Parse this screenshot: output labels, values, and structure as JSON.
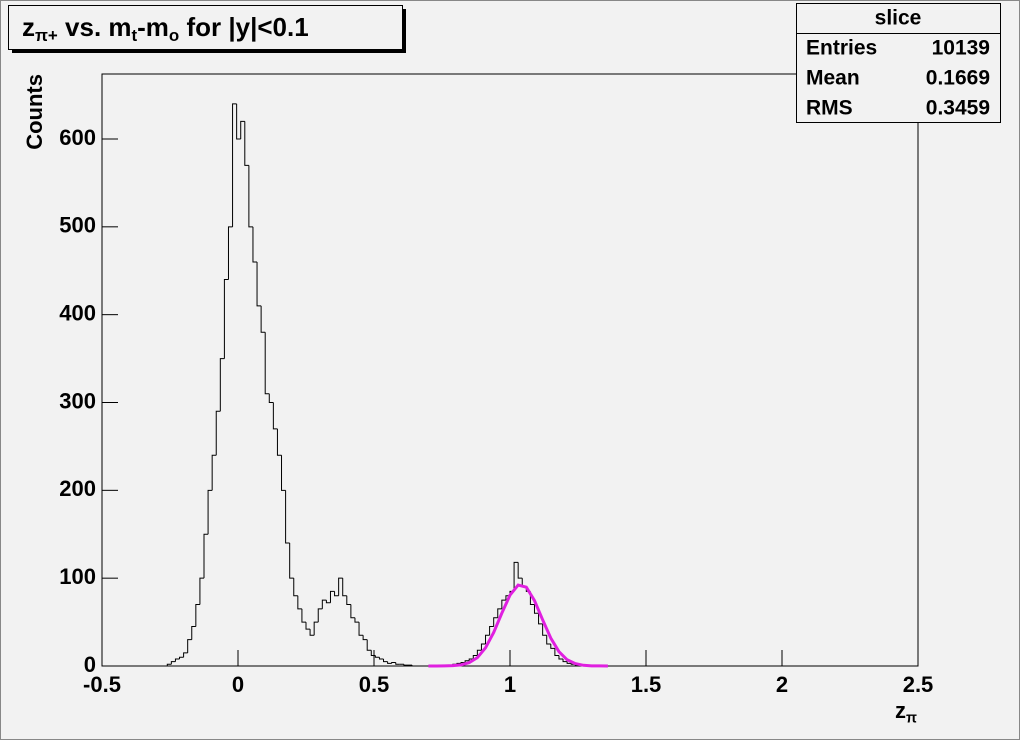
{
  "chart_data": {
    "type": "histogram",
    "title": [
      {
        "text": "z"
      },
      {
        "text": "π+",
        "sub": true
      },
      {
        "text": " vs. m"
      },
      {
        "text": "t",
        "sub": true
      },
      {
        "text": "-m"
      },
      {
        "text": "o",
        "sub": true
      },
      {
        "text": " for |y|<0.1"
      }
    ],
    "x_label": [
      {
        "text": "z"
      },
      {
        "text": "π",
        "sub": true
      }
    ],
    "y_label": "Counts",
    "color": "#000000",
    "bins": [
      -0.26,
      -0.245,
      -0.23,
      -0.215,
      -0.2,
      -0.185,
      -0.17,
      -0.155,
      -0.14,
      -0.125,
      -0.11,
      -0.095,
      -0.08,
      -0.065,
      -0.05,
      -0.035,
      -0.02,
      -0.005,
      0.01,
      0.025,
      0.04,
      0.055,
      0.07,
      0.085,
      0.1,
      0.115,
      0.13,
      0.145,
      0.16,
      0.175,
      0.19,
      0.205,
      0.22,
      0.235,
      0.25,
      0.265,
      0.28,
      0.295,
      0.31,
      0.325,
      0.34,
      0.355,
      0.37,
      0.385,
      0.4,
      0.415,
      0.43,
      0.445,
      0.46,
      0.475,
      0.49,
      0.505,
      0.52,
      0.535,
      0.55,
      0.565,
      0.58,
      0.595,
      0.61,
      0.625,
      0.64,
      0.655,
      0.67,
      0.685,
      0.7,
      0.715,
      0.73,
      0.745,
      0.76,
      0.775,
      0.79,
      0.805,
      0.82,
      0.835,
      0.85,
      0.865,
      0.88,
      0.895,
      0.91,
      0.925,
      0.94,
      0.955,
      0.97,
      0.985,
      1.0,
      1.015,
      1.03,
      1.045,
      1.06,
      1.075,
      1.09,
      1.105,
      1.12,
      1.135,
      1.15,
      1.165,
      1.18,
      1.195,
      1.21,
      1.225,
      1.24,
      1.255,
      1.27,
      1.285,
      1.3
    ],
    "values": [
      2,
      5,
      8,
      10,
      15,
      30,
      45,
      70,
      100,
      150,
      200,
      240,
      290,
      350,
      440,
      500,
      640,
      600,
      620,
      570,
      500,
      460,
      410,
      380,
      310,
      300,
      270,
      240,
      200,
      140,
      100,
      80,
      65,
      50,
      42,
      35,
      50,
      65,
      75,
      72,
      85,
      80,
      100,
      80,
      70,
      55,
      50,
      35,
      30,
      18,
      12,
      10,
      8,
      5,
      3,
      4,
      2,
      2,
      1,
      1,
      0,
      0,
      0,
      0,
      0,
      0,
      0,
      0,
      1,
      1,
      2,
      3,
      4,
      6,
      8,
      12,
      18,
      25,
      35,
      45,
      55,
      65,
      75,
      80,
      85,
      118,
      100,
      90,
      85,
      70,
      60,
      48,
      35,
      25,
      20,
      12,
      8,
      5,
      3,
      2,
      1,
      1,
      0,
      0
    ],
    "fit": {
      "color": "#e020e0",
      "x": [
        0.7,
        0.73,
        0.76,
        0.79,
        0.82,
        0.85,
        0.88,
        0.91,
        0.94,
        0.97,
        1.0,
        1.03,
        1.06,
        1.09,
        1.12,
        1.15,
        1.18,
        1.21,
        1.24,
        1.27,
        1.3,
        1.33,
        1.36
      ],
      "values": [
        0,
        0,
        0.1,
        0.4,
        1.3,
        3.8,
        9.5,
        20.7,
        38.2,
        60.2,
        80.7,
        92.2,
        89.8,
        74.5,
        52.6,
        31.7,
        16.3,
        7.1,
        2.7,
        0.8,
        0.2,
        0.1,
        0
      ]
    },
    "xlim": [
      -0.5,
      2.5
    ],
    "xticks": [
      -0.5,
      0,
      0.5,
      1,
      1.5,
      2,
      2.5
    ],
    "ylim": [
      0,
      674
    ],
    "yticks": [
      0,
      100,
      200,
      300,
      400,
      500,
      600
    ],
    "stats": {
      "title": "slice",
      "rows": [
        {
          "label": "Entries",
          "value": 10139
        },
        {
          "label": "Mean",
          "value": 0.1669
        },
        {
          "label": "RMS",
          "value": 0.3459
        }
      ]
    }
  }
}
